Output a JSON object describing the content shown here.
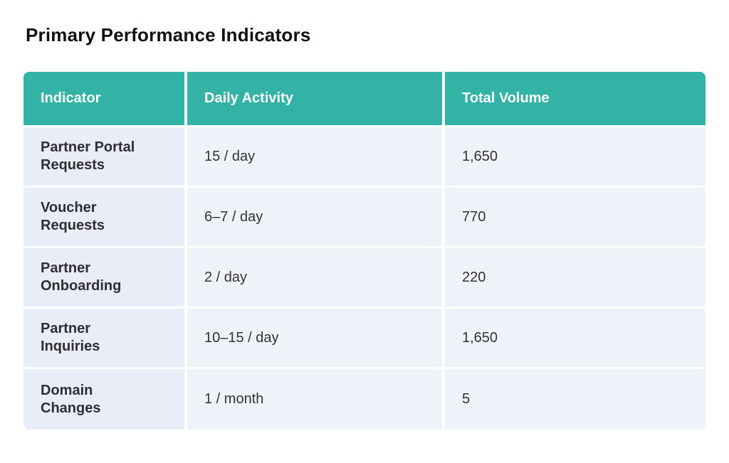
{
  "title": "Primary Performance Indicators",
  "table": {
    "headers": [
      "Indicator",
      "Daily Activity",
      "Total Volume"
    ],
    "rows": [
      {
        "indicator_line1": "Partner Portal",
        "indicator_line2": "Requests",
        "daily": "15 / day",
        "total": "1,650"
      },
      {
        "indicator_line1": "Voucher",
        "indicator_line2": "Requests",
        "daily": "6–7 / day",
        "total": "770"
      },
      {
        "indicator_line1": "Partner",
        "indicator_line2": "Onboarding",
        "daily": "2 / day",
        "total": "220"
      },
      {
        "indicator_line1": "Partner",
        "indicator_line2": "Inquiries",
        "daily": "10–15 / day",
        "total": "1,650"
      },
      {
        "indicator_line1": "Domain",
        "indicator_line2": "Changes",
        "daily": "1 / month",
        "total": "5"
      }
    ]
  },
  "colors": {
    "header_bg": "#33b3a6",
    "row_bg": "#eef2f9",
    "text": "#333333"
  }
}
